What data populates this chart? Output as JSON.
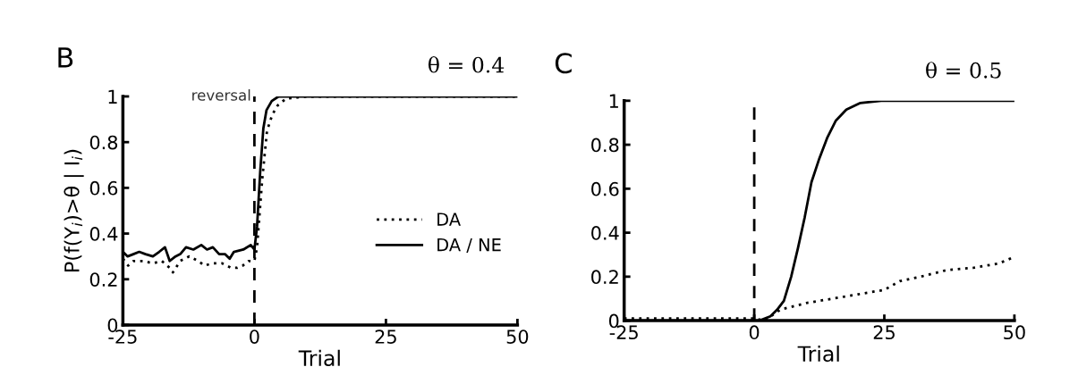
{
  "chart_data": [
    {
      "type": "line",
      "title": "B",
      "ylabel": "P(f(Y$_{i}$)>θ | I$_{i}$)",
      "xlabel": "Trial",
      "annotations": [
        "θ = 0.4"
      ],
      "xlim": [
        -25,
        50
      ],
      "xticks": [
        -25,
        0,
        25,
        50
      ],
      "ylim": [
        0,
        1
      ],
      "yticks": [
        0,
        0.2,
        0.4,
        0.6,
        0.8,
        1
      ],
      "grid": false,
      "legend": "right",
      "marker": "none",
      "ref_lines": [
        {
          "axis": "x",
          "value": 0,
          "label": "reversal",
          "color": "#000000",
          "line_style": "dashed"
        }
      ],
      "series": [
        {
          "name": "DA",
          "color": "#000000",
          "line_style": "dotted",
          "x": [
            -25,
            -24,
            -23,
            -21.2,
            -19.3,
            -17.6,
            -16.1,
            -15.5,
            -14.1,
            -12.4,
            -10.7,
            -9.5,
            -7.9,
            -6.2,
            -4.4,
            -3.3,
            -2.2,
            -1.1,
            0,
            0.5,
            1.5,
            2.4,
            3.4,
            4.4,
            6,
            10,
            20,
            30,
            40,
            50
          ],
          "values": [
            0.29,
            0.26,
            0.28,
            0.28,
            0.27,
            0.28,
            0.25,
            0.23,
            0.28,
            0.3,
            0.28,
            0.26,
            0.27,
            0.27,
            0.25,
            0.25,
            0.26,
            0.28,
            0.28,
            0.34,
            0.64,
            0.85,
            0.92,
            0.96,
            0.99,
            1,
            1,
            1,
            1,
            1
          ]
        },
        {
          "name": "DA / NE",
          "color": "#000000",
          "line_style": "solid",
          "x": [
            -25,
            -24.1,
            -23,
            -21.9,
            -20.7,
            -19.3,
            -18.1,
            -17,
            -16.1,
            -15,
            -14.1,
            -13,
            -11.6,
            -10.1,
            -9,
            -7.9,
            -6.7,
            -5.6,
            -4.7,
            -3.9,
            -2.1,
            -0.7,
            0,
            0.5,
            1.1,
            1.7,
            2.3,
            3.3,
            4.6,
            10,
            20,
            30,
            40,
            50
          ],
          "values": [
            0.32,
            0.3,
            0.31,
            0.32,
            0.31,
            0.3,
            0.32,
            0.34,
            0.28,
            0.3,
            0.31,
            0.34,
            0.33,
            0.35,
            0.33,
            0.34,
            0.31,
            0.31,
            0.29,
            0.32,
            0.33,
            0.35,
            0.33,
            0.43,
            0.67,
            0.86,
            0.94,
            0.98,
            1,
            1,
            1,
            1,
            1,
            1
          ]
        }
      ]
    },
    {
      "type": "line",
      "title": "C",
      "xlabel": "Trial",
      "annotations": [
        "θ = 0.5"
      ],
      "xlim": [
        -25,
        50
      ],
      "xticks": [
        -25,
        0,
        25,
        50
      ],
      "ylim": [
        0,
        1
      ],
      "yticks": [
        0,
        0.2,
        0.4,
        0.6,
        0.8,
        1
      ],
      "grid": false,
      "marker": "none",
      "ref_lines": [
        {
          "axis": "x",
          "value": 0,
          "color": "#000000",
          "line_style": "dashed"
        }
      ],
      "series": [
        {
          "color": "#000000",
          "line_style": "dotted",
          "x": [
            -25,
            -10,
            0,
            2,
            5,
            10,
            15,
            20,
            25,
            28,
            32,
            37,
            42,
            47,
            50
          ],
          "values": [
            0.01,
            0.01,
            0.01,
            0,
            0.05,
            0.08,
            0.1,
            0.12,
            0.14,
            0.18,
            0.2,
            0.23,
            0.24,
            0.26,
            0.29
          ]
        },
        {
          "color": "#000000",
          "line_style": "solid",
          "x": [
            -25,
            0,
            1,
            3.1,
            4.4,
            5.7,
            7.1,
            8.4,
            9.7,
            11,
            12.4,
            14,
            15.7,
            17.7,
            20.4,
            24.4,
            50
          ],
          "values": [
            0,
            0,
            0,
            0.02,
            0.05,
            0.09,
            0.2,
            0.33,
            0.47,
            0.63,
            0.73,
            0.83,
            0.91,
            0.96,
            0.99,
            1,
            1
          ]
        }
      ]
    }
  ]
}
